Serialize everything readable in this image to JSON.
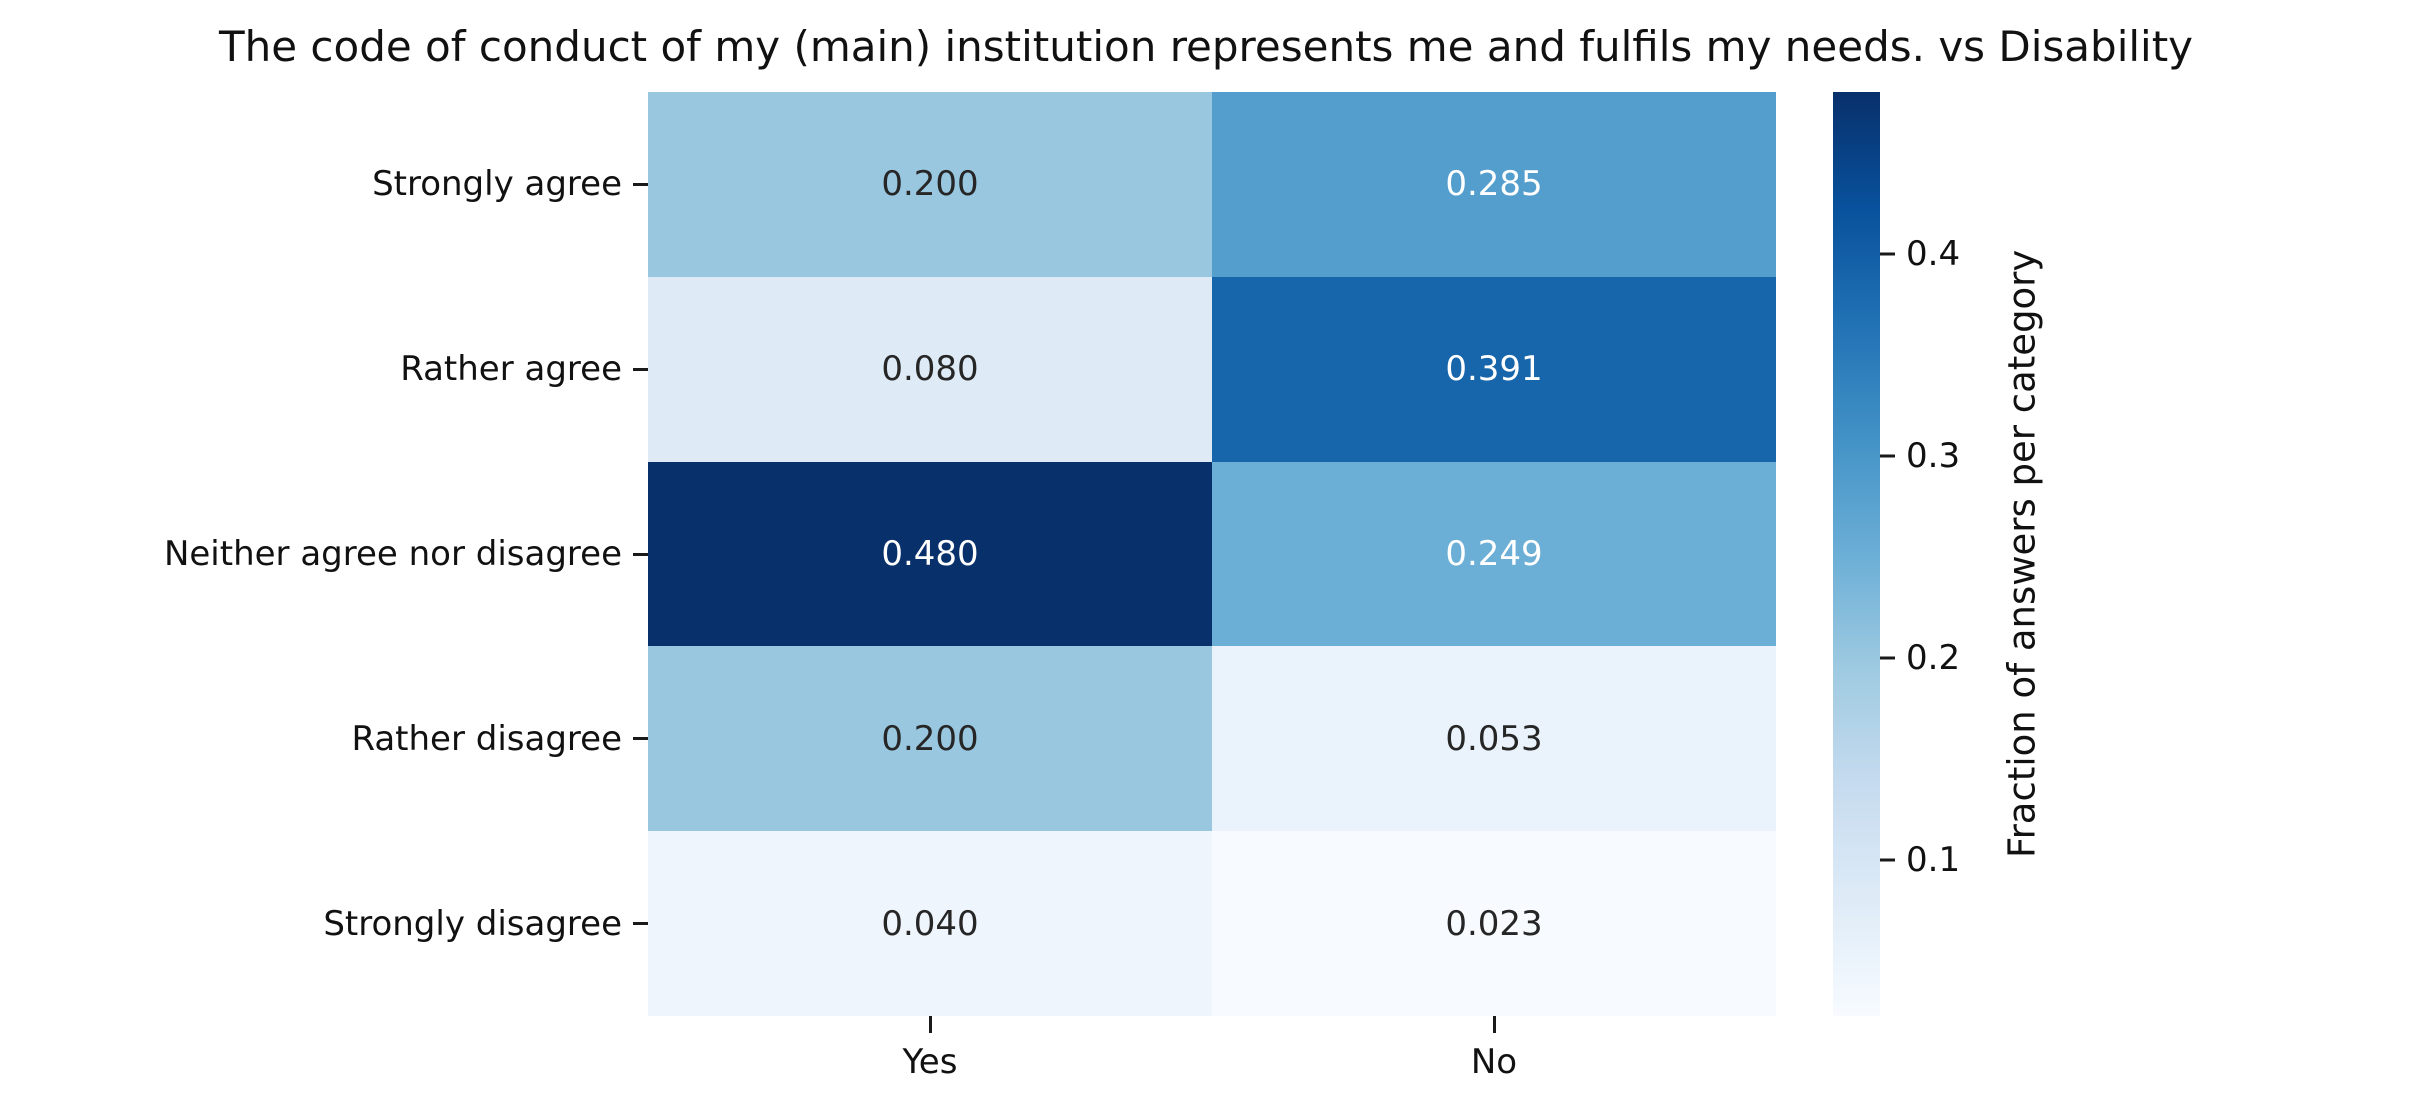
{
  "title": "The code of conduct of my (main) institution represents me and fulfils my needs. vs Disability",
  "chart_data": {
    "type": "heatmap",
    "title": "The code of conduct of my (main) institution represents me and fulfils my needs. vs Disability",
    "x_categories": [
      "Yes",
      "No"
    ],
    "y_categories": [
      "Strongly agree",
      "Rather agree",
      "Neither agree nor disagree",
      "Rather disagree",
      "Strongly disagree"
    ],
    "values": [
      [
        0.2,
        0.285
      ],
      [
        0.08,
        0.391
      ],
      [
        0.48,
        0.249
      ],
      [
        0.2,
        0.053
      ],
      [
        0.04,
        0.023
      ]
    ],
    "cell_labels": [
      [
        "0.200",
        "0.285"
      ],
      [
        "0.080",
        "0.391"
      ],
      [
        "0.480",
        "0.249"
      ],
      [
        "0.200",
        "0.053"
      ],
      [
        "0.040",
        "0.023"
      ]
    ],
    "cell_colors": [
      [
        "#99c7e0",
        "#539ecd"
      ],
      [
        "#deebf6",
        "#1765aa"
      ],
      [
        "#08306b",
        "#6baed6"
      ],
      [
        "#99c7e0",
        "#eaf3fb"
      ],
      [
        "#eff5fc",
        "#f7fbff"
      ]
    ],
    "cell_text_colors": [
      [
        "#262626",
        "#ffffff"
      ],
      [
        "#262626",
        "#ffffff"
      ],
      [
        "#ffffff",
        "#ffffff"
      ],
      [
        "#262626",
        "#262626"
      ],
      [
        "#262626",
        "#262626"
      ]
    ],
    "colormap": "Blues",
    "grid": false,
    "colorbar": {
      "label": "Fraction of answers per category",
      "tick_labels": [
        "0.4",
        "0.3",
        "0.2",
        "0.1"
      ],
      "tick_values": [
        0.4,
        0.3,
        0.2,
        0.1
      ],
      "vmin": 0.023,
      "vmax": 0.48,
      "position": "right",
      "gradient_stops_top_to_bottom": [
        "#08306b",
        "#08519c",
        "#2171b5",
        "#4292c6",
        "#6baed6",
        "#9ecae1",
        "#c6dbef",
        "#deebf7",
        "#f7fbff"
      ]
    }
  }
}
